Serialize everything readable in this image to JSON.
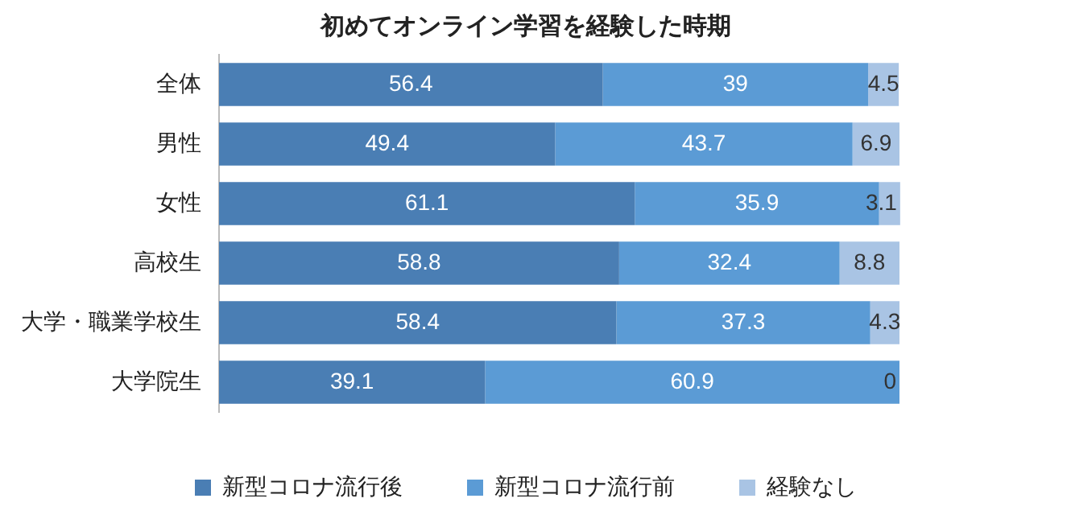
{
  "chart_data": {
    "type": "bar",
    "orientation": "horizontal",
    "stacked": true,
    "title": "初めてオンライン学習を経験した時期",
    "categories": [
      "全体",
      "男性",
      "女性",
      "高校生",
      "大学・職業学校生",
      "大学院生"
    ],
    "series": [
      {
        "name": "新型コロナ流行後",
        "color": "#4a7eb4",
        "values": [
          56.4,
          49.4,
          61.1,
          58.8,
          58.4,
          39.1
        ]
      },
      {
        "name": "新型コロナ流行前",
        "color": "#5b9bd5",
        "values": [
          39,
          43.7,
          35.9,
          32.4,
          37.3,
          60.9
        ]
      },
      {
        "name": "経験なし",
        "color": "#a9c4e4",
        "values": [
          4.5,
          6.9,
          3.1,
          8.8,
          4.3,
          0
        ]
      }
    ],
    "data_labels": true,
    "grid": false,
    "legend": "bottom",
    "tick_labels": "y"
  }
}
